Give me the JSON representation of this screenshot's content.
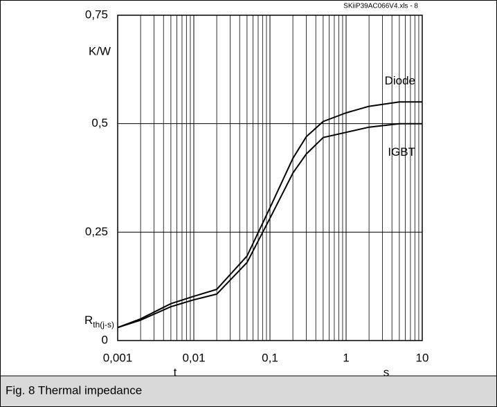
{
  "chart_data": {
    "type": "line",
    "source": "SKiiP39AC066V4.xls - 8",
    "y_unit": "K/W",
    "ylabel": {
      "main": "R",
      "sub": "th(j-s)"
    },
    "xlabel": "t",
    "x_unit": "s",
    "caption": "Fig. 8 Thermal impedance",
    "log_x": true,
    "grid": true,
    "xlim": [
      0.001,
      10
    ],
    "ylim": [
      0,
      0.75
    ],
    "xticks": [
      {
        "value": 0.001,
        "label": "0,001"
      },
      {
        "value": 0.01,
        "label": "0,01"
      },
      {
        "value": 0.1,
        "label": "0,1"
      },
      1,
      10
    ],
    "xminorticks": [
      0.002,
      0.003,
      0.004,
      0.005,
      0.006,
      0.007,
      0.008,
      0.009,
      0.02,
      0.03,
      0.04,
      0.05,
      0.06,
      0.07,
      0.08,
      0.09,
      0.2,
      0.3,
      0.4,
      0.5,
      0.6,
      0.7,
      0.8,
      0.9,
      2,
      3,
      4,
      5,
      6,
      7,
      8,
      9
    ],
    "yticks": [
      0,
      {
        "value": 0.25,
        "label": "0,25"
      },
      {
        "value": 0.5,
        "label": "0,5"
      },
      {
        "value": 0.75,
        "label": "0,75"
      }
    ],
    "x": [
      0.001,
      0.002,
      0.005,
      0.01,
      0.02,
      0.05,
      0.1,
      0.2,
      0.3,
      0.5,
      1,
      2,
      5,
      10
    ],
    "series": [
      {
        "name": "Diode",
        "color": "#000000",
        "values": [
          0.03,
          0.05,
          0.085,
          0.102,
          0.118,
          0.195,
          0.306,
          0.42,
          0.47,
          0.505,
          0.525,
          0.54,
          0.55,
          0.55
        ]
      },
      {
        "name": "IGBT",
        "color": "#000000",
        "values": [
          0.03,
          0.047,
          0.078,
          0.094,
          0.107,
          0.18,
          0.282,
          0.386,
          0.43,
          0.468,
          0.48,
          0.492,
          0.5,
          0.5
        ]
      }
    ]
  }
}
